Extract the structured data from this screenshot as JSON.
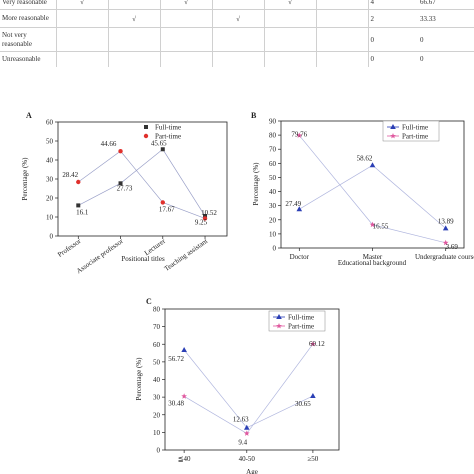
{
  "table": {
    "rows": [
      {
        "label": "Very reasonable",
        "checks": [
          "√",
          "",
          "√",
          "",
          "√",
          ""
        ],
        "count": "4",
        "percent": "66.67"
      },
      {
        "label": "More reasonable",
        "checks": [
          "",
          "√",
          "",
          "√",
          "",
          ""
        ],
        "count": "2",
        "percent": "33.33"
      },
      {
        "label": "Not very reasonable",
        "checks": [
          "",
          "",
          "",
          "",
          "",
          ""
        ],
        "count": "0",
        "percent": "0"
      },
      {
        "label": "Unreasonable",
        "checks": [
          "",
          "",
          "",
          "",
          "",
          ""
        ],
        "count": "0",
        "percent": "0"
      }
    ]
  },
  "chart_data": [
    {
      "panel": "A",
      "type": "line",
      "categories": [
        "Professor",
        "Associate professor",
        "Lecturer",
        "Teaching assistant"
      ],
      "series": [
        {
          "name": "Full-time",
          "values": [
            16.1,
            27.73,
            45.65,
            10.52
          ],
          "labels": [
            "16.1",
            "27.73",
            "45.65",
            "10.52"
          ],
          "color": "#333333",
          "marker": "square"
        },
        {
          "name": "Part-time",
          "values": [
            28.42,
            44.66,
            17.67,
            9.25
          ],
          "labels": [
            "28.42",
            "44.66",
            "17.67",
            "9.25"
          ],
          "color": "#e0302c",
          "marker": "circle"
        }
      ],
      "xlabel": "Positional titles",
      "ylabel": "Percentage (%)",
      "ylim": [
        0,
        60
      ],
      "yticks": [
        0,
        10,
        20,
        30,
        40,
        50,
        60
      ],
      "legend": "top-right",
      "grid": false
    },
    {
      "panel": "B",
      "type": "line",
      "categories": [
        "Doctor",
        "Master",
        "Undergraduate course"
      ],
      "series": [
        {
          "name": "Full-time",
          "values": [
            27.49,
            58.62,
            13.89
          ],
          "labels": [
            "27.49",
            "58.62",
            "13.89"
          ],
          "color": "#2b3fb5",
          "marker": "triangle"
        },
        {
          "name": "Part-time",
          "values": [
            79.76,
            16.55,
            3.69
          ],
          "labels": [
            "79.76",
            "16.55",
            "3.69"
          ],
          "color": "#e05aa0",
          "marker": "star"
        }
      ],
      "xlabel": "Educational background",
      "ylabel": "Percentage (%)",
      "ylim": [
        0,
        90
      ],
      "yticks": [
        0,
        10,
        20,
        30,
        40,
        50,
        60,
        70,
        80,
        90
      ],
      "legend": "top-right",
      "grid": false
    },
    {
      "panel": "C",
      "type": "line",
      "categories": [
        "≦40",
        "40-50",
        "≥50"
      ],
      "series": [
        {
          "name": "Full-time",
          "values": [
            56.72,
            12.63,
            30.65
          ],
          "labels": [
            "56.72",
            "12.63",
            "30.65"
          ],
          "color": "#2b3fb5",
          "marker": "triangle"
        },
        {
          "name": "Part-time",
          "values": [
            30.48,
            9.4,
            60.12
          ],
          "labels": [
            "30.48",
            "9.4",
            "60.12"
          ],
          "color": "#e05aa0",
          "marker": "star"
        }
      ],
      "xlabel": "Age",
      "ylabel": "Percentage (%)",
      "ylim": [
        0,
        80
      ],
      "yticks": [
        0,
        10,
        20,
        30,
        40,
        50,
        60,
        70,
        80
      ],
      "legend": "top-right",
      "grid": false
    }
  ]
}
